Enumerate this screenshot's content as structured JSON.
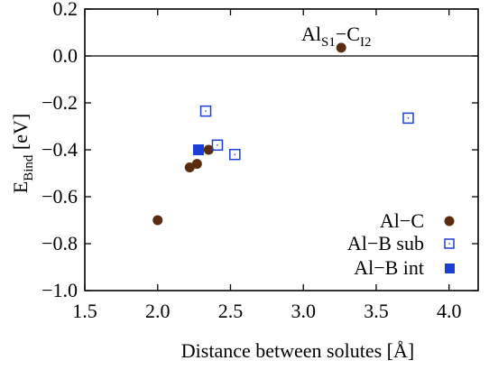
{
  "chart_data": {
    "type": "scatter",
    "xlabel": "Distance between solutes [Å]",
    "ylabel": "E",
    "ylabel_sub": "Bind",
    "ylabel_unit": " [eV]",
    "xlim": [
      1.5,
      4.2
    ],
    "ylim": [
      -1.0,
      0.2
    ],
    "xticks": [
      1.5,
      2.0,
      2.5,
      3.0,
      3.5,
      4.0
    ],
    "xtick_labels": [
      "1.5",
      "2.0",
      "2.5",
      "3.0",
      "3.5",
      "4.0"
    ],
    "yticks": [
      0.2,
      0.0,
      -0.2,
      -0.4,
      -0.6,
      -0.8,
      -1.0
    ],
    "ytick_labels": [
      "0.2",
      "0.0",
      "−0.2",
      "−0.4",
      "−0.6",
      "−0.8",
      "−1.0"
    ],
    "zero_line": true,
    "grid": false,
    "legend_position": "bottom-right",
    "series": [
      {
        "name": "Al−C",
        "marker": "filled-circle",
        "color": "#5a2d10",
        "points": [
          {
            "x": 2.0,
            "y": -0.7
          },
          {
            "x": 2.22,
            "y": -0.475
          },
          {
            "x": 2.27,
            "y": -0.46
          },
          {
            "x": 2.35,
            "y": -0.4
          },
          {
            "x": 3.26,
            "y": 0.035
          }
        ]
      },
      {
        "name": "Al−B sub",
        "marker": "open-square",
        "color": "#1a3fd6",
        "points": [
          {
            "x": 2.33,
            "y": -0.235
          },
          {
            "x": 2.41,
            "y": -0.38
          },
          {
            "x": 2.53,
            "y": -0.42
          },
          {
            "x": 3.72,
            "y": -0.265
          }
        ]
      },
      {
        "name": "Al−B int",
        "marker": "filled-square",
        "color": "#1a3fd6",
        "points": [
          {
            "x": 2.28,
            "y": -0.4
          }
        ]
      }
    ],
    "annotation": {
      "main1": "Al",
      "sub1": "S1",
      "dash": "−",
      "main2": "C",
      "sub2": "I2"
    }
  }
}
